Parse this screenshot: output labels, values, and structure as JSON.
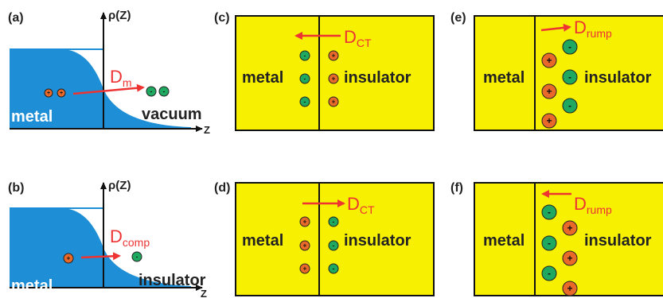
{
  "panels": {
    "a": {
      "label": "(a)",
      "axis": "ρ(Z)",
      "z": "Z",
      "left": "metal",
      "right": "vacuum",
      "dipole": "D",
      "dipole_sub": "m"
    },
    "b": {
      "label": "(b)",
      "axis": "ρ(Z)",
      "z": "Z",
      "left": "metal",
      "right": "insulator",
      "dipole": "D",
      "dipole_sub": "comp"
    },
    "c": {
      "label": "(c)",
      "left": "metal",
      "right": "insulator",
      "dipole": "D",
      "dipole_sub": "CT"
    },
    "d": {
      "label": "(d)",
      "left": "metal",
      "right": "insulator",
      "dipole": "D",
      "dipole_sub": "CT"
    },
    "e": {
      "label": "(e)",
      "left": "metal",
      "right": "insulator",
      "dipole": "D",
      "dipole_sub": "rump"
    },
    "f": {
      "label": "(f)",
      "left": "metal",
      "right": "insulator",
      "dipole": "D",
      "dipole_sub": "rump"
    }
  },
  "charges": {
    "plus": "+",
    "minus": "-"
  },
  "colors": {
    "metal_blue": "#1e8fd6",
    "box_yellow": "#f7f000",
    "arrow_red": "#ee3333",
    "plus_orange": "#e8692a",
    "minus_green": "#1fa85f"
  }
}
